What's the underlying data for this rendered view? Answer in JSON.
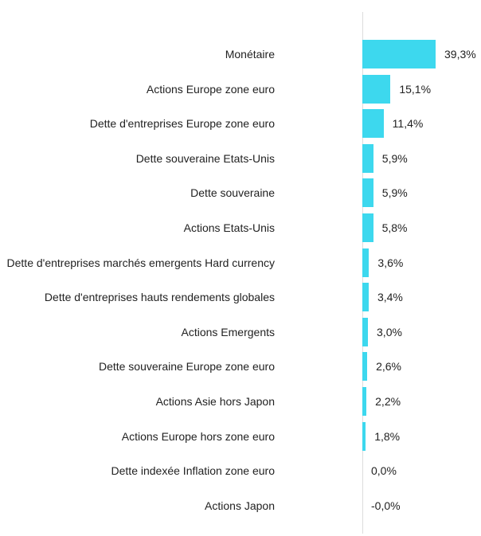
{
  "chart_data": {
    "type": "bar",
    "orientation": "horizontal",
    "categories": [
      "Monétaire",
      "Actions Europe zone euro",
      "Dette d'entreprises Europe zone euro",
      "Dette souveraine Etats-Unis",
      "Dette souveraine",
      "Actions Etats-Unis",
      "Dette d'entreprises marchés emergents Hard currency",
      "Dette d'entreprises hauts rendements globales",
      "Actions Emergents",
      "Dette souveraine Europe zone euro",
      "Actions Asie hors Japon",
      "Actions Europe hors zone euro",
      "Dette indexée Inflation zone euro",
      "Actions Japon"
    ],
    "values": [
      39.3,
      15.1,
      11.4,
      5.9,
      5.9,
      5.8,
      3.6,
      3.4,
      3.0,
      2.6,
      2.2,
      1.8,
      0.0,
      -0.0
    ],
    "value_labels": [
      "39,3%",
      "15,1%",
      "11,4%",
      "5,9%",
      "5,9%",
      "5,8%",
      "3,6%",
      "3,4%",
      "3,0%",
      "2,6%",
      "2,2%",
      "1,8%",
      "0,0%",
      "-0,0%"
    ],
    "color": "#3dd8ee"
  }
}
